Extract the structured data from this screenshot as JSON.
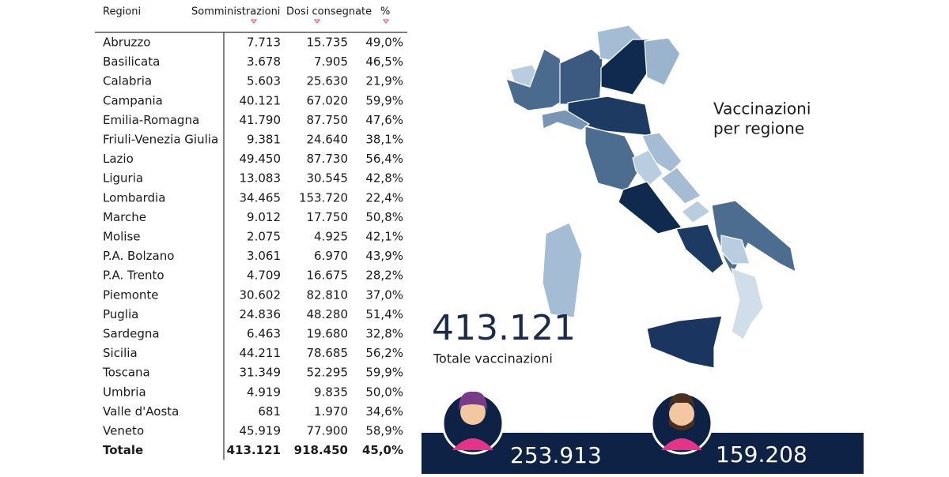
{
  "table": {
    "header": [
      "Regioni",
      "Somministrazioni",
      "Dosi consegnate",
      "%"
    ],
    "rows": [
      [
        "Abruzzo",
        "7.713",
        "15.735",
        "49,0%"
      ],
      [
        "Basilicata",
        "3.678",
        "7.905",
        "46,5%"
      ],
      [
        "Calabria",
        "5.603",
        "25.630",
        "21,9%"
      ],
      [
        "Campania",
        "40.121",
        "67.020",
        "59,9%"
      ],
      [
        "Emilia-Romagna",
        "41.790",
        "87.750",
        "47,6%"
      ],
      [
        "Friuli-Venezia Giulia",
        "9.381",
        "24.640",
        "38,1%"
      ],
      [
        "Lazio",
        "49.450",
        "87.730",
        "56,4%"
      ],
      [
        "Liguria",
        "13.083",
        "30.545",
        "42,8%"
      ],
      [
        "Lombardia",
        "34.465",
        "153.720",
        "22,4%"
      ],
      [
        "Marche",
        "9.012",
        "17.750",
        "50,8%"
      ],
      [
        "Molise",
        "2.075",
        "4.925",
        "42,1%"
      ],
      [
        "P.A. Bolzano",
        "3.061",
        "6.970",
        "43,9%"
      ],
      [
        "P.A. Trento",
        "4.709",
        "16.675",
        "28,2%"
      ],
      [
        "Piemonte",
        "30.602",
        "82.810",
        "37,0%"
      ],
      [
        "Puglia",
        "24.836",
        "48.280",
        "51,4%"
      ],
      [
        "Sardegna",
        "6.463",
        "19.680",
        "32,8%"
      ],
      [
        "Sicilia",
        "44.211",
        "78.685",
        "56,2%"
      ],
      [
        "Toscana",
        "31.349",
        "52.295",
        "59,9%"
      ],
      [
        "Umbria",
        "4.919",
        "9.835",
        "50,0%"
      ],
      [
        "Valle d'Aosta",
        "681",
        "1.970",
        "34,6%"
      ],
      [
        "Veneto",
        "45.919",
        "77.900",
        "58,9%"
      ]
    ],
    "total": [
      "Totale",
      "413.121",
      "918.450",
      "45,0%"
    ]
  },
  "map_title": [
    "Vaccinazioni",
    "per regione"
  ],
  "summary": {
    "value": "413.121",
    "label": "Totale vaccinazioni"
  },
  "women": "253.913",
  "men": "159.208"
}
